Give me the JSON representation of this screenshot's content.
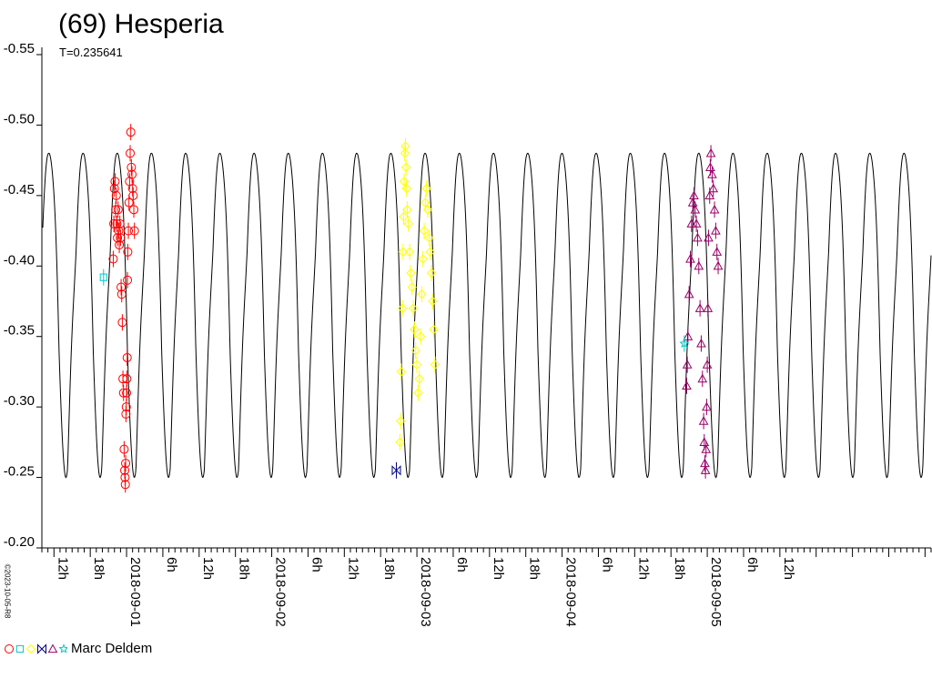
{
  "chart_data": {
    "type": "line+scatter",
    "title": "(69) Hesperia",
    "subtitle": "T=0.235641",
    "ylim": [
      -0.55,
      -0.2
    ],
    "y_inverted": true,
    "y_ticks": [
      "-0.55",
      "-0.50",
      "-0.45",
      "-0.40",
      "-0.35",
      "-0.30",
      "-0.25",
      "-0.20"
    ],
    "x_range_hours": [
      -14,
      133
    ],
    "x_tick_labels": [
      {
        "h": -12,
        "label": "12h"
      },
      {
        "h": -6,
        "label": "18h"
      },
      {
        "h": 0,
        "label": "2018-09-01"
      },
      {
        "h": 6,
        "label": "6h"
      },
      {
        "h": 12,
        "label": "12h"
      },
      {
        "h": 18,
        "label": "18h"
      },
      {
        "h": 24,
        "label": "2018-09-02"
      },
      {
        "h": 30,
        "label": "6h"
      },
      {
        "h": 36,
        "label": "12h"
      },
      {
        "h": 42,
        "label": "18h"
      },
      {
        "h": 48,
        "label": "2018-09-03"
      },
      {
        "h": 54,
        "label": "6h"
      },
      {
        "h": 60,
        "label": "12h"
      },
      {
        "h": 66,
        "label": "18h"
      },
      {
        "h": 72,
        "label": "2018-09-04"
      },
      {
        "h": 78,
        "label": "6h"
      },
      {
        "h": 84,
        "label": "12h"
      },
      {
        "h": 90,
        "label": "18h"
      },
      {
        "h": 96,
        "label": "2018-09-05"
      },
      {
        "h": 102,
        "label": "6h"
      },
      {
        "h": 108,
        "label": "12h"
      }
    ],
    "model_curve": {
      "period_hours": 5.655,
      "phase_peak_hours": -12.85,
      "max_mag": -0.48,
      "min_mag": -0.25,
      "secondary_max_mag": -0.445
    },
    "series": [
      {
        "session": 1,
        "marker": "circle",
        "color": "#ff0000",
        "points": [
          [
            -2.2,
            -0.405
          ],
          [
            -2.1,
            -0.43
          ],
          [
            -2.0,
            -0.455
          ],
          [
            -1.9,
            -0.46
          ],
          [
            -1.8,
            -0.44
          ],
          [
            -1.7,
            -0.45
          ],
          [
            -1.6,
            -0.43
          ],
          [
            -1.5,
            -0.42
          ],
          [
            -1.4,
            -0.44
          ],
          [
            -1.3,
            -0.425
          ],
          [
            -1.2,
            -0.415
          ],
          [
            -1.1,
            -0.43
          ],
          [
            -1.0,
            -0.42
          ],
          [
            -0.9,
            -0.385
          ],
          [
            -0.8,
            -0.38
          ],
          [
            -0.7,
            -0.36
          ],
          [
            -0.6,
            -0.32
          ],
          [
            -0.5,
            -0.31
          ],
          [
            -0.4,
            -0.27
          ],
          [
            -0.3,
            -0.255
          ],
          [
            -0.25,
            -0.25
          ],
          [
            -0.2,
            -0.245
          ],
          [
            -0.15,
            -0.26
          ],
          [
            -0.1,
            -0.295
          ],
          [
            -0.05,
            -0.3
          ],
          [
            0.0,
            -0.31
          ],
          [
            0.05,
            -0.32
          ],
          [
            0.1,
            -0.335
          ],
          [
            0.15,
            -0.39
          ],
          [
            0.2,
            -0.41
          ],
          [
            0.3,
            -0.425
          ],
          [
            0.4,
            -0.445
          ],
          [
            0.5,
            -0.46
          ],
          [
            0.6,
            -0.48
          ],
          [
            0.7,
            -0.495
          ],
          [
            0.8,
            -0.47
          ],
          [
            0.9,
            -0.465
          ],
          [
            1.0,
            -0.455
          ],
          [
            1.1,
            -0.45
          ],
          [
            1.2,
            -0.44
          ],
          [
            1.3,
            -0.425
          ]
        ]
      },
      {
        "session": 2,
        "marker": "square",
        "color": "#00c8c8",
        "points": [
          [
            -3.8,
            -0.392
          ]
        ]
      },
      {
        "session": 3,
        "marker": "diamond",
        "color": "#ffff00",
        "points": [
          [
            45.2,
            -0.275
          ],
          [
            45.3,
            -0.29
          ],
          [
            45.4,
            -0.325
          ],
          [
            45.6,
            -0.37
          ],
          [
            45.7,
            -0.41
          ],
          [
            45.8,
            -0.435
          ],
          [
            45.9,
            -0.46
          ],
          [
            46.0,
            -0.48
          ],
          [
            46.1,
            -0.485
          ],
          [
            46.2,
            -0.47
          ],
          [
            46.3,
            -0.455
          ],
          [
            46.4,
            -0.44
          ],
          [
            46.6,
            -0.43
          ],
          [
            46.8,
            -0.41
          ],
          [
            47.0,
            -0.395
          ],
          [
            47.2,
            -0.385
          ],
          [
            47.4,
            -0.37
          ],
          [
            47.6,
            -0.355
          ],
          [
            47.8,
            -0.34
          ],
          [
            48.0,
            -0.33
          ],
          [
            48.2,
            -0.31
          ],
          [
            48.4,
            -0.32
          ],
          [
            48.6,
            -0.35
          ],
          [
            48.8,
            -0.38
          ],
          [
            49.0,
            -0.405
          ],
          [
            49.2,
            -0.425
          ],
          [
            49.4,
            -0.445
          ],
          [
            49.6,
            -0.455
          ],
          [
            49.8,
            -0.44
          ],
          [
            50.0,
            -0.42
          ],
          [
            50.2,
            -0.41
          ],
          [
            50.4,
            -0.395
          ],
          [
            50.6,
            -0.375
          ],
          [
            50.8,
            -0.355
          ],
          [
            51.0,
            -0.33
          ]
        ]
      },
      {
        "session": 4,
        "marker": "bowtie",
        "color": "#000080",
        "points": [
          [
            44.6,
            -0.255
          ]
        ]
      },
      {
        "session": 5,
        "marker": "triangle",
        "color": "#990066",
        "points": [
          [
            92.6,
            -0.315
          ],
          [
            92.7,
            -0.33
          ],
          [
            92.8,
            -0.35
          ],
          [
            93.0,
            -0.38
          ],
          [
            93.2,
            -0.405
          ],
          [
            93.4,
            -0.43
          ],
          [
            93.6,
            -0.445
          ],
          [
            93.8,
            -0.45
          ],
          [
            94.0,
            -0.44
          ],
          [
            94.2,
            -0.43
          ],
          [
            94.4,
            -0.42
          ],
          [
            94.6,
            -0.4
          ],
          [
            94.8,
            -0.37
          ],
          [
            95.0,
            -0.345
          ],
          [
            95.2,
            -0.32
          ],
          [
            95.4,
            -0.29
          ],
          [
            95.5,
            -0.275
          ],
          [
            95.6,
            -0.26
          ],
          [
            95.7,
            -0.255
          ],
          [
            95.8,
            -0.27
          ],
          [
            95.9,
            -0.3
          ],
          [
            96.0,
            -0.33
          ],
          [
            96.1,
            -0.37
          ],
          [
            96.2,
            -0.42
          ],
          [
            96.4,
            -0.45
          ],
          [
            96.5,
            -0.47
          ],
          [
            96.6,
            -0.48
          ],
          [
            96.8,
            -0.465
          ],
          [
            97.0,
            -0.455
          ],
          [
            97.2,
            -0.44
          ],
          [
            97.4,
            -0.425
          ],
          [
            97.6,
            -0.41
          ],
          [
            97.8,
            -0.4
          ]
        ]
      },
      {
        "session": 6,
        "marker": "star",
        "color": "#00c8c8",
        "points": [
          [
            92.2,
            -0.345
          ]
        ]
      }
    ],
    "legend": {
      "label": "Marc Deldem"
    },
    "stamp": "©2023-10-05-R8"
  }
}
